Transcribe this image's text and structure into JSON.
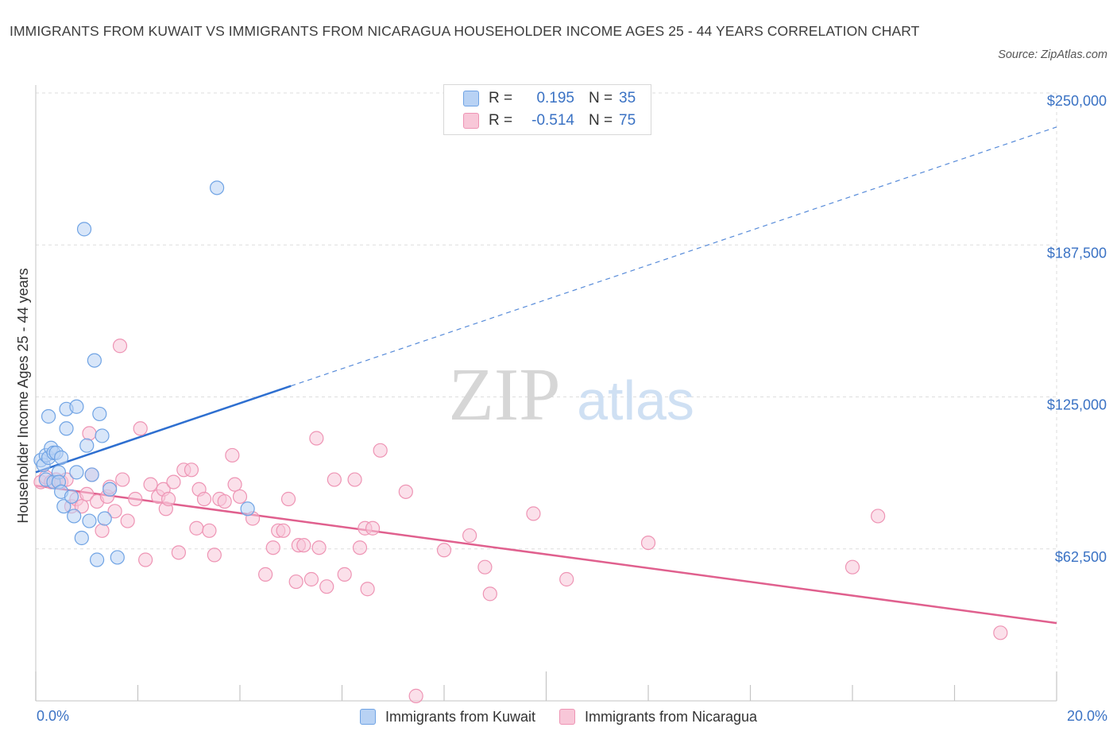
{
  "title": "IMMIGRANTS FROM KUWAIT VS IMMIGRANTS FROM NICARAGUA HOUSEHOLDER INCOME AGES 25 - 44 YEARS CORRELATION CHART",
  "source": "Source: ZipAtlas.com",
  "watermark": {
    "zip": "ZIP",
    "atlas": "atlas"
  },
  "legend_stats": [
    {
      "r_label": "R =",
      "r_value": "0.195",
      "n_label": "N =",
      "n_value": "35"
    },
    {
      "r_label": "R =",
      "r_value": "-0.514",
      "n_label": "N =",
      "n_value": "75"
    }
  ],
  "colors": {
    "kuwait_fill": "#b8d2f4",
    "kuwait_stroke": "#6fa3e4",
    "kuwait_line": "#2e6fd0",
    "nicaragua_fill": "#f8c7d8",
    "nicaragua_stroke": "#ee94b4",
    "nicaragua_line": "#e0608e",
    "axis_label": "#3a72c4",
    "grid": "#dedede"
  },
  "chart_data": {
    "type": "scatter",
    "title": "IMMIGRANTS FROM KUWAIT VS IMMIGRANTS FROM NICARAGUA HOUSEHOLDER INCOME AGES 25 - 44 YEARS CORRELATION CHART",
    "xlabel": "",
    "ylabel": "Householder Income Ages 25 - 44 years",
    "xlim": [
      0,
      20
    ],
    "ylim": [
      0,
      250000
    ],
    "x_tick_labels": [
      "0.0%",
      "20.0%"
    ],
    "y_ticks": [
      62500,
      125000,
      187500,
      250000
    ],
    "y_tick_labels": [
      "$62,500",
      "$125,000",
      "$187,500",
      "$250,000"
    ],
    "grid": true,
    "legend_position": "bottom",
    "series": [
      {
        "name": "Immigrants from Kuwait",
        "points": [
          [
            0.1,
            99000
          ],
          [
            0.15,
            97000
          ],
          [
            0.2,
            101000
          ],
          [
            0.2,
            91000
          ],
          [
            0.25,
            100000
          ],
          [
            0.25,
            117000
          ],
          [
            0.3,
            104000
          ],
          [
            0.35,
            102000
          ],
          [
            0.4,
            102000
          ],
          [
            0.35,
            90000
          ],
          [
            0.45,
            94000
          ],
          [
            0.45,
            90000
          ],
          [
            0.5,
            86000
          ],
          [
            0.5,
            100000
          ],
          [
            0.55,
            80000
          ],
          [
            0.6,
            120000
          ],
          [
            0.6,
            112000
          ],
          [
            0.7,
            84000
          ],
          [
            0.75,
            76000
          ],
          [
            0.8,
            121000
          ],
          [
            0.8,
            94000
          ],
          [
            0.9,
            67000
          ],
          [
            0.95,
            194000
          ],
          [
            1.0,
            105000
          ],
          [
            1.05,
            74000
          ],
          [
            1.1,
            93000
          ],
          [
            1.15,
            140000
          ],
          [
            1.2,
            58000
          ],
          [
            1.25,
            118000
          ],
          [
            1.3,
            109000
          ],
          [
            1.35,
            75000
          ],
          [
            1.45,
            87000
          ],
          [
            1.6,
            59000
          ],
          [
            3.55,
            211000
          ],
          [
            4.15,
            79000
          ]
        ],
        "trend": {
          "x": [
            0,
            5.0
          ],
          "y": [
            94000,
            129500
          ]
        },
        "trend_extension": {
          "x": [
            5.0,
            20.0
          ],
          "y": [
            129500,
            236000
          ]
        }
      },
      {
        "name": "Immigrants from Nicaragua",
        "points": [
          [
            0.1,
            90000
          ],
          [
            0.2,
            92000
          ],
          [
            0.3,
            90000
          ],
          [
            0.4,
            91000
          ],
          [
            0.5,
            90000
          ],
          [
            0.6,
            91000
          ],
          [
            0.7,
            80000
          ],
          [
            0.8,
            83000
          ],
          [
            0.9,
            80000
          ],
          [
            1.0,
            85000
          ],
          [
            1.05,
            110000
          ],
          [
            1.1,
            93000
          ],
          [
            1.2,
            82000
          ],
          [
            1.3,
            70000
          ],
          [
            1.4,
            84000
          ],
          [
            1.45,
            88000
          ],
          [
            1.55,
            78000
          ],
          [
            1.65,
            146000
          ],
          [
            1.7,
            91000
          ],
          [
            1.8,
            74000
          ],
          [
            1.95,
            83000
          ],
          [
            2.05,
            112000
          ],
          [
            2.15,
            58000
          ],
          [
            2.25,
            89000
          ],
          [
            2.4,
            84000
          ],
          [
            2.5,
            87000
          ],
          [
            2.55,
            79000
          ],
          [
            2.6,
            83000
          ],
          [
            2.7,
            90000
          ],
          [
            2.8,
            61000
          ],
          [
            2.9,
            95000
          ],
          [
            3.05,
            95000
          ],
          [
            3.15,
            71000
          ],
          [
            3.2,
            87000
          ],
          [
            3.3,
            83000
          ],
          [
            3.4,
            70000
          ],
          [
            3.5,
            60000
          ],
          [
            3.6,
            83000
          ],
          [
            3.7,
            82000
          ],
          [
            3.85,
            101000
          ],
          [
            3.9,
            89000
          ],
          [
            4.0,
            84000
          ],
          [
            4.25,
            75000
          ],
          [
            4.5,
            52000
          ],
          [
            4.65,
            63000
          ],
          [
            4.75,
            70000
          ],
          [
            4.85,
            70000
          ],
          [
            4.95,
            83000
          ],
          [
            5.1,
            49000
          ],
          [
            5.15,
            64000
          ],
          [
            5.25,
            64000
          ],
          [
            5.4,
            50000
          ],
          [
            5.5,
            108000
          ],
          [
            5.55,
            63000
          ],
          [
            5.7,
            47000
          ],
          [
            5.85,
            91000
          ],
          [
            6.05,
            52000
          ],
          [
            6.25,
            91000
          ],
          [
            6.35,
            63000
          ],
          [
            6.45,
            71000
          ],
          [
            6.5,
            46000
          ],
          [
            6.6,
            71000
          ],
          [
            6.75,
            103000
          ],
          [
            7.25,
            86000
          ],
          [
            7.45,
            2000
          ],
          [
            8.0,
            62000
          ],
          [
            8.5,
            68000
          ],
          [
            8.8,
            55000
          ],
          [
            8.9,
            44000
          ],
          [
            9.75,
            77000
          ],
          [
            10.4,
            50000
          ],
          [
            12.0,
            65000
          ],
          [
            16.0,
            55000
          ],
          [
            16.5,
            76000
          ],
          [
            18.9,
            28000
          ]
        ],
        "trend": {
          "x": [
            0,
            20.0
          ],
          "y": [
            88500,
            32000
          ]
        }
      }
    ]
  },
  "bottom_legend": [
    {
      "label": "Immigrants from Kuwait"
    },
    {
      "label": "Immigrants from Nicaragua"
    }
  ]
}
